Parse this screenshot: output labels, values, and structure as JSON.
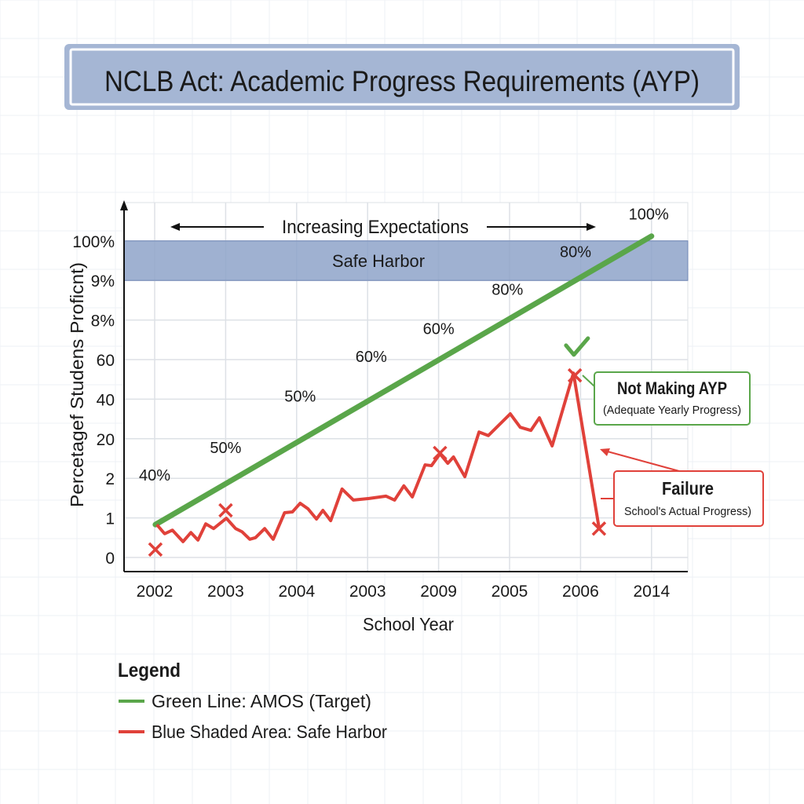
{
  "chart_data": {
    "type": "line",
    "title": "NCLB Act: Academic Progress Requirements (AYP)",
    "xlabel": "School Year",
    "ylabel": "Percetagef Studens Proficnt)",
    "x_tick_labels": [
      "2002",
      "2003",
      "2004",
      "2003",
      "2009",
      "2005",
      "2006",
      "2014"
    ],
    "y_tick_labels": [
      "0",
      "1",
      "2",
      "20",
      "40",
      "60",
      "8%",
      "9%",
      "100%"
    ],
    "axis_note": "x and y values are given as positions along the printed tick sequence (tick 0 = first label)",
    "grid": true,
    "header_annotation": "Increasing Expectations",
    "band": {
      "label": "Safe Harbor",
      "y_from": 7,
      "y_to": 8,
      "color": "#8ea3c9"
    },
    "series": [
      {
        "name": "Green Line: AMOS (Target)",
        "color": "#5aa64a",
        "points": [
          [
            0.01,
            0.83
          ],
          [
            7.0,
            8.12
          ]
        ],
        "point_labels": [
          {
            "text": "40%",
            "x": 0.0,
            "y": 2.1
          },
          {
            "text": "50%",
            "x": 1.0,
            "y": 2.8
          },
          {
            "text": "50%",
            "x": 2.05,
            "y": 4.1
          },
          {
            "text": "60%",
            "x": 3.05,
            "y": 5.1
          },
          {
            "text": "60%",
            "x": 4.0,
            "y": 5.8
          },
          {
            "text": "80%",
            "x": 4.97,
            "y": 6.8
          },
          {
            "text": "80%",
            "x": 5.93,
            "y": 7.75
          },
          {
            "text": "100%",
            "x": 6.96,
            "y": 8.7
          }
        ]
      },
      {
        "name": "Blue Shaded Area: Safe Harbor",
        "color": "#e0413a",
        "points": [
          [
            0.03,
            0.83
          ],
          [
            0.14,
            0.6
          ],
          [
            0.25,
            0.69
          ],
          [
            0.4,
            0.4
          ],
          [
            0.51,
            0.63
          ],
          [
            0.61,
            0.44
          ],
          [
            0.72,
            0.85
          ],
          [
            0.83,
            0.73
          ],
          [
            1.01,
            0.99
          ],
          [
            1.14,
            0.73
          ],
          [
            1.23,
            0.65
          ],
          [
            1.34,
            0.46
          ],
          [
            1.42,
            0.5
          ],
          [
            1.55,
            0.73
          ],
          [
            1.67,
            0.46
          ],
          [
            1.83,
            1.13
          ],
          [
            1.94,
            1.15
          ],
          [
            2.05,
            1.37
          ],
          [
            2.16,
            1.23
          ],
          [
            2.28,
            0.97
          ],
          [
            2.37,
            1.19
          ],
          [
            2.48,
            0.93
          ],
          [
            2.64,
            1.73
          ],
          [
            2.8,
            1.45
          ],
          [
            3.02,
            1.49
          ],
          [
            3.26,
            1.55
          ],
          [
            3.38,
            1.45
          ],
          [
            3.51,
            1.81
          ],
          [
            3.63,
            1.53
          ],
          [
            3.81,
            2.34
          ],
          [
            3.9,
            2.32
          ],
          [
            4.02,
            2.62
          ],
          [
            4.13,
            2.38
          ],
          [
            4.21,
            2.54
          ],
          [
            4.37,
            2.04
          ],
          [
            4.57,
            3.17
          ],
          [
            4.7,
            3.08
          ],
          [
            5.01,
            3.63
          ],
          [
            5.15,
            3.29
          ],
          [
            5.3,
            3.21
          ],
          [
            5.42,
            3.53
          ],
          [
            5.6,
            2.82
          ],
          [
            5.9,
            4.66
          ],
          [
            6.26,
            0.75
          ]
        ],
        "x_markers": [
          [
            0.01,
            0.2
          ],
          [
            1.0,
            1.19
          ],
          [
            4.02,
            2.64
          ],
          [
            5.92,
            4.6
          ],
          [
            6.26,
            0.73
          ]
        ]
      }
    ],
    "annotations": {
      "check": {
        "x": 5.95,
        "y": 5.3,
        "color": "#5aa64a"
      },
      "not_making_ayp": {
        "title": "Not Making AYP",
        "subtitle": "(Adequate Yearly Progress)",
        "color": "#5aa64a"
      },
      "failure": {
        "title": "Failure",
        "subtitle": "School's Actual Progress)",
        "color": "#e0413a"
      }
    },
    "legend": {
      "title": "Legend",
      "placement": "bottom-left",
      "items": [
        {
          "label": "Green Line: AMOS (Target)",
          "color": "#5aa64a"
        },
        {
          "label": "Blue Shaded Area: Safe Harbor",
          "color": "#e0413a"
        }
      ]
    },
    "title_box_color": "#a5b6d4"
  }
}
